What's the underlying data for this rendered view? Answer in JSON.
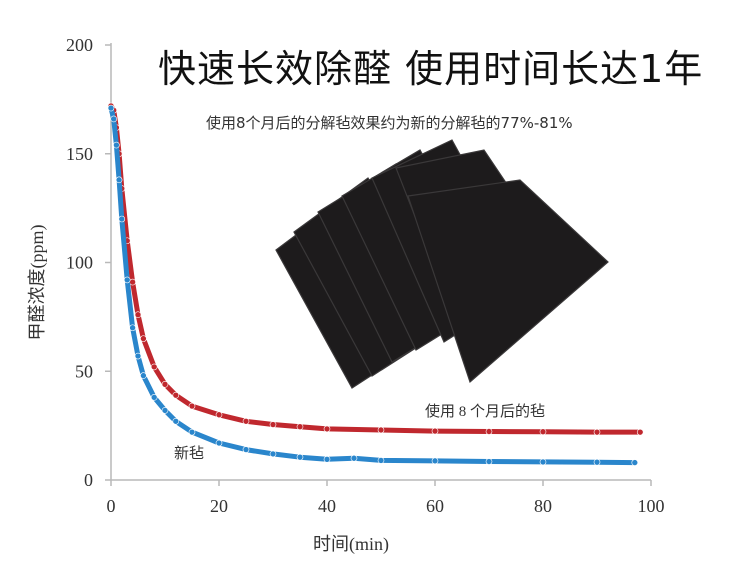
{
  "headline": "快速长效除醛  使用时间长达1年",
  "subheadline": "使用8个月后的分解毡效果约为新的分解毡的77%-81%",
  "colors": {
    "used_felt": "#c0282e",
    "new_felt": "#2a86cc",
    "axis": "#b9b9b9",
    "felt_sheet": "#1d1b1c"
  },
  "chart_data": {
    "type": "line",
    "xlabel": "时间(min)",
    "ylabel": "甲醛浓度(ppm)",
    "xlim": [
      0,
      100
    ],
    "ylim": [
      0,
      200
    ],
    "xticks": [
      0,
      20,
      40,
      60,
      80,
      100
    ],
    "yticks": [
      0,
      50,
      100,
      150,
      200
    ],
    "grid": false,
    "legend": "inline labels",
    "series": [
      {
        "name": "使用 8 个月后的毡",
        "color": "#c0282e",
        "x": [
          0,
          0.5,
          1,
          1.5,
          2,
          3,
          4,
          5,
          6,
          8,
          10,
          12,
          15,
          20,
          25,
          30,
          35,
          40,
          50,
          60,
          70,
          80,
          90,
          98
        ],
        "y": [
          172,
          170,
          162,
          150,
          134,
          110,
          91,
          76,
          65,
          52,
          44,
          39,
          34,
          30,
          27,
          25.5,
          24.5,
          23.5,
          23,
          22.5,
          22.3,
          22.2,
          22,
          22
        ]
      },
      {
        "name": "新毡",
        "color": "#2a86cc",
        "x": [
          0,
          0.5,
          1,
          1.5,
          2,
          3,
          4,
          5,
          6,
          8,
          10,
          12,
          15,
          20,
          25,
          30,
          35,
          40,
          45,
          50,
          60,
          70,
          80,
          90,
          97
        ],
        "y": [
          171,
          166,
          154,
          138,
          120,
          92,
          70,
          57,
          48,
          38,
          32,
          27,
          22,
          17,
          14,
          12,
          10.5,
          9.5,
          10,
          9,
          8.8,
          8.5,
          8.3,
          8.2,
          8
        ]
      }
    ]
  }
}
